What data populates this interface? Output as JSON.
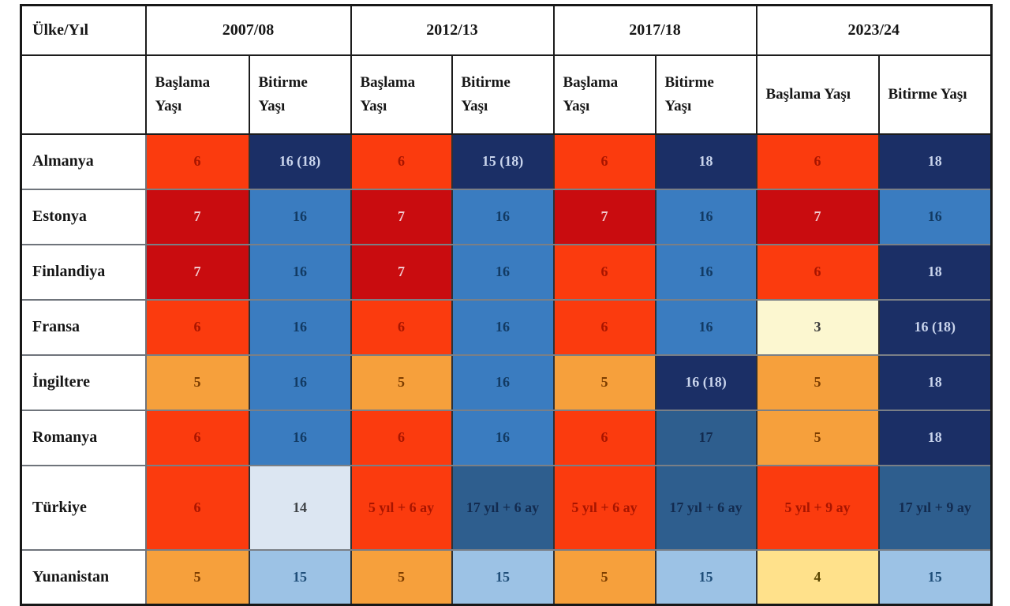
{
  "table": {
    "corner_label": "Ülke/Yıl",
    "year_groups": [
      "2007/08",
      "2012/13",
      "2017/18",
      "2023/24"
    ],
    "subheader": {
      "start": "Başlama Yaşı",
      "end": "Bitirme Yaşı"
    },
    "palette": {
      "orange_red": "#FB3B0E",
      "dark_red": "#C90C0F",
      "navy": "#1B2F66",
      "medium_blue": "#3A7CC0",
      "slate_blue": "#2E5E8E",
      "amber": "#F6A03C",
      "pale_yellow": "#FCF7D0",
      "pale_blue_gray": "#DCE6F2",
      "light_blue": "#9CC2E5",
      "soft_yellow": "#FFE18B"
    },
    "rows": [
      {
        "country": "Almanya",
        "cells": [
          {
            "v": "6",
            "bg": "#FB3B0E",
            "fg": "#A81500"
          },
          {
            "v": "16 (18)",
            "bg": "#1B2F66",
            "fg": "#C9D4EC"
          },
          {
            "v": "6",
            "bg": "#FB3B0E",
            "fg": "#A81500"
          },
          {
            "v": "15 (18)",
            "bg": "#1B2F66",
            "fg": "#C9D4EC"
          },
          {
            "v": "6",
            "bg": "#FB3B0E",
            "fg": "#A81500"
          },
          {
            "v": "18",
            "bg": "#1B2F66",
            "fg": "#C9D4EC"
          },
          {
            "v": "6",
            "bg": "#FB3B0E",
            "fg": "#A81500"
          },
          {
            "v": "18",
            "bg": "#1B2F66",
            "fg": "#C9D4EC"
          }
        ]
      },
      {
        "country": "Estonya",
        "cells": [
          {
            "v": "7",
            "bg": "#C90C0F",
            "fg": "#F2C9CE"
          },
          {
            "v": "16",
            "bg": "#3A7CC0",
            "fg": "#123A63"
          },
          {
            "v": "7",
            "bg": "#C90C0F",
            "fg": "#F2C9CE"
          },
          {
            "v": "16",
            "bg": "#3A7CC0",
            "fg": "#123A63"
          },
          {
            "v": "7",
            "bg": "#C90C0F",
            "fg": "#F2C9CE"
          },
          {
            "v": "16",
            "bg": "#3A7CC0",
            "fg": "#123A63"
          },
          {
            "v": "7",
            "bg": "#C90C0F",
            "fg": "#F2C9CE"
          },
          {
            "v": "16",
            "bg": "#3A7CC0",
            "fg": "#123A63"
          }
        ]
      },
      {
        "country": "Finlandiya",
        "cells": [
          {
            "v": "7",
            "bg": "#C90C0F",
            "fg": "#F2C9CE"
          },
          {
            "v": "16",
            "bg": "#3A7CC0",
            "fg": "#123A63"
          },
          {
            "v": "7",
            "bg": "#C90C0F",
            "fg": "#F2C9CE"
          },
          {
            "v": "16",
            "bg": "#3A7CC0",
            "fg": "#123A63"
          },
          {
            "v": "6",
            "bg": "#FB3B0E",
            "fg": "#A81500"
          },
          {
            "v": "16",
            "bg": "#3A7CC0",
            "fg": "#123A63"
          },
          {
            "v": "6",
            "bg": "#FB3B0E",
            "fg": "#A81500"
          },
          {
            "v": "18",
            "bg": "#1B2F66",
            "fg": "#C9D4EC"
          }
        ]
      },
      {
        "country": "Fransa",
        "cells": [
          {
            "v": "6",
            "bg": "#FB3B0E",
            "fg": "#A81500"
          },
          {
            "v": "16",
            "bg": "#3A7CC0",
            "fg": "#123A63"
          },
          {
            "v": "6",
            "bg": "#FB3B0E",
            "fg": "#A81500"
          },
          {
            "v": "16",
            "bg": "#3A7CC0",
            "fg": "#123A63"
          },
          {
            "v": "6",
            "bg": "#FB3B0E",
            "fg": "#A81500"
          },
          {
            "v": "16",
            "bg": "#3A7CC0",
            "fg": "#123A63"
          },
          {
            "v": "3",
            "bg": "#FCF7D0",
            "fg": "#3A3A3A"
          },
          {
            "v": "16 (18)",
            "bg": "#1B2F66",
            "fg": "#C9D4EC"
          }
        ]
      },
      {
        "country": "İngiltere",
        "cells": [
          {
            "v": "5",
            "bg": "#F6A03C",
            "fg": "#7C3D00"
          },
          {
            "v": "16",
            "bg": "#3A7CC0",
            "fg": "#123A63"
          },
          {
            "v": "5",
            "bg": "#F6A03C",
            "fg": "#7C3D00"
          },
          {
            "v": "16",
            "bg": "#3A7CC0",
            "fg": "#123A63"
          },
          {
            "v": "5",
            "bg": "#F6A03C",
            "fg": "#7C3D00"
          },
          {
            "v": "16 (18)",
            "bg": "#1B2F66",
            "fg": "#C9D4EC"
          },
          {
            "v": "5",
            "bg": "#F6A03C",
            "fg": "#7C3D00"
          },
          {
            "v": "18",
            "bg": "#1B2F66",
            "fg": "#C9D4EC"
          }
        ]
      },
      {
        "country": "Romanya",
        "cells": [
          {
            "v": "6",
            "bg": "#FB3B0E",
            "fg": "#A81500"
          },
          {
            "v": "16",
            "bg": "#3A7CC0",
            "fg": "#123A63"
          },
          {
            "v": "6",
            "bg": "#FB3B0E",
            "fg": "#A81500"
          },
          {
            "v": "16",
            "bg": "#3A7CC0",
            "fg": "#123A63"
          },
          {
            "v": "6",
            "bg": "#FB3B0E",
            "fg": "#A81500"
          },
          {
            "v": "17",
            "bg": "#2E5E8E",
            "fg": "#132B4F"
          },
          {
            "v": "5",
            "bg": "#F6A03C",
            "fg": "#7C3D00"
          },
          {
            "v": "18",
            "bg": "#1B2F66",
            "fg": "#C9D4EC"
          }
        ]
      },
      {
        "country": "Türkiye",
        "cells": [
          {
            "v": "6",
            "bg": "#FB3B0E",
            "fg": "#A81500"
          },
          {
            "v": "14",
            "bg": "#DCE6F2",
            "fg": "#3F4347"
          },
          {
            "v": "5 yıl + 6 ay",
            "bg": "#FB3B0E",
            "fg": "#A81500"
          },
          {
            "v": "17 yıl + 6 ay",
            "bg": "#2E5E8E",
            "fg": "#132B4F"
          },
          {
            "v": "5 yıl + 6 ay",
            "bg": "#FB3B0E",
            "fg": "#A81500"
          },
          {
            "v": "17 yıl + 6 ay",
            "bg": "#2E5E8E",
            "fg": "#132B4F"
          },
          {
            "v": "5 yıl + 9 ay",
            "bg": "#FB3B0E",
            "fg": "#A81500"
          },
          {
            "v": "17 yıl + 9 ay",
            "bg": "#2E5E8E",
            "fg": "#132B4F"
          }
        ]
      },
      {
        "country": "Yunanistan",
        "cells": [
          {
            "v": "5",
            "bg": "#F6A03C",
            "fg": "#7C3D00"
          },
          {
            "v": "15",
            "bg": "#9CC2E5",
            "fg": "#1F4E79"
          },
          {
            "v": "5",
            "bg": "#F6A03C",
            "fg": "#7C3D00"
          },
          {
            "v": "15",
            "bg": "#9CC2E5",
            "fg": "#1F4E79"
          },
          {
            "v": "5",
            "bg": "#F6A03C",
            "fg": "#7C3D00"
          },
          {
            "v": "15",
            "bg": "#9CC2E5",
            "fg": "#1F4E79"
          },
          {
            "v": "4",
            "bg": "#FFE18B",
            "fg": "#5A4500"
          },
          {
            "v": "15",
            "bg": "#9CC2E5",
            "fg": "#1F4E79"
          }
        ]
      }
    ]
  }
}
